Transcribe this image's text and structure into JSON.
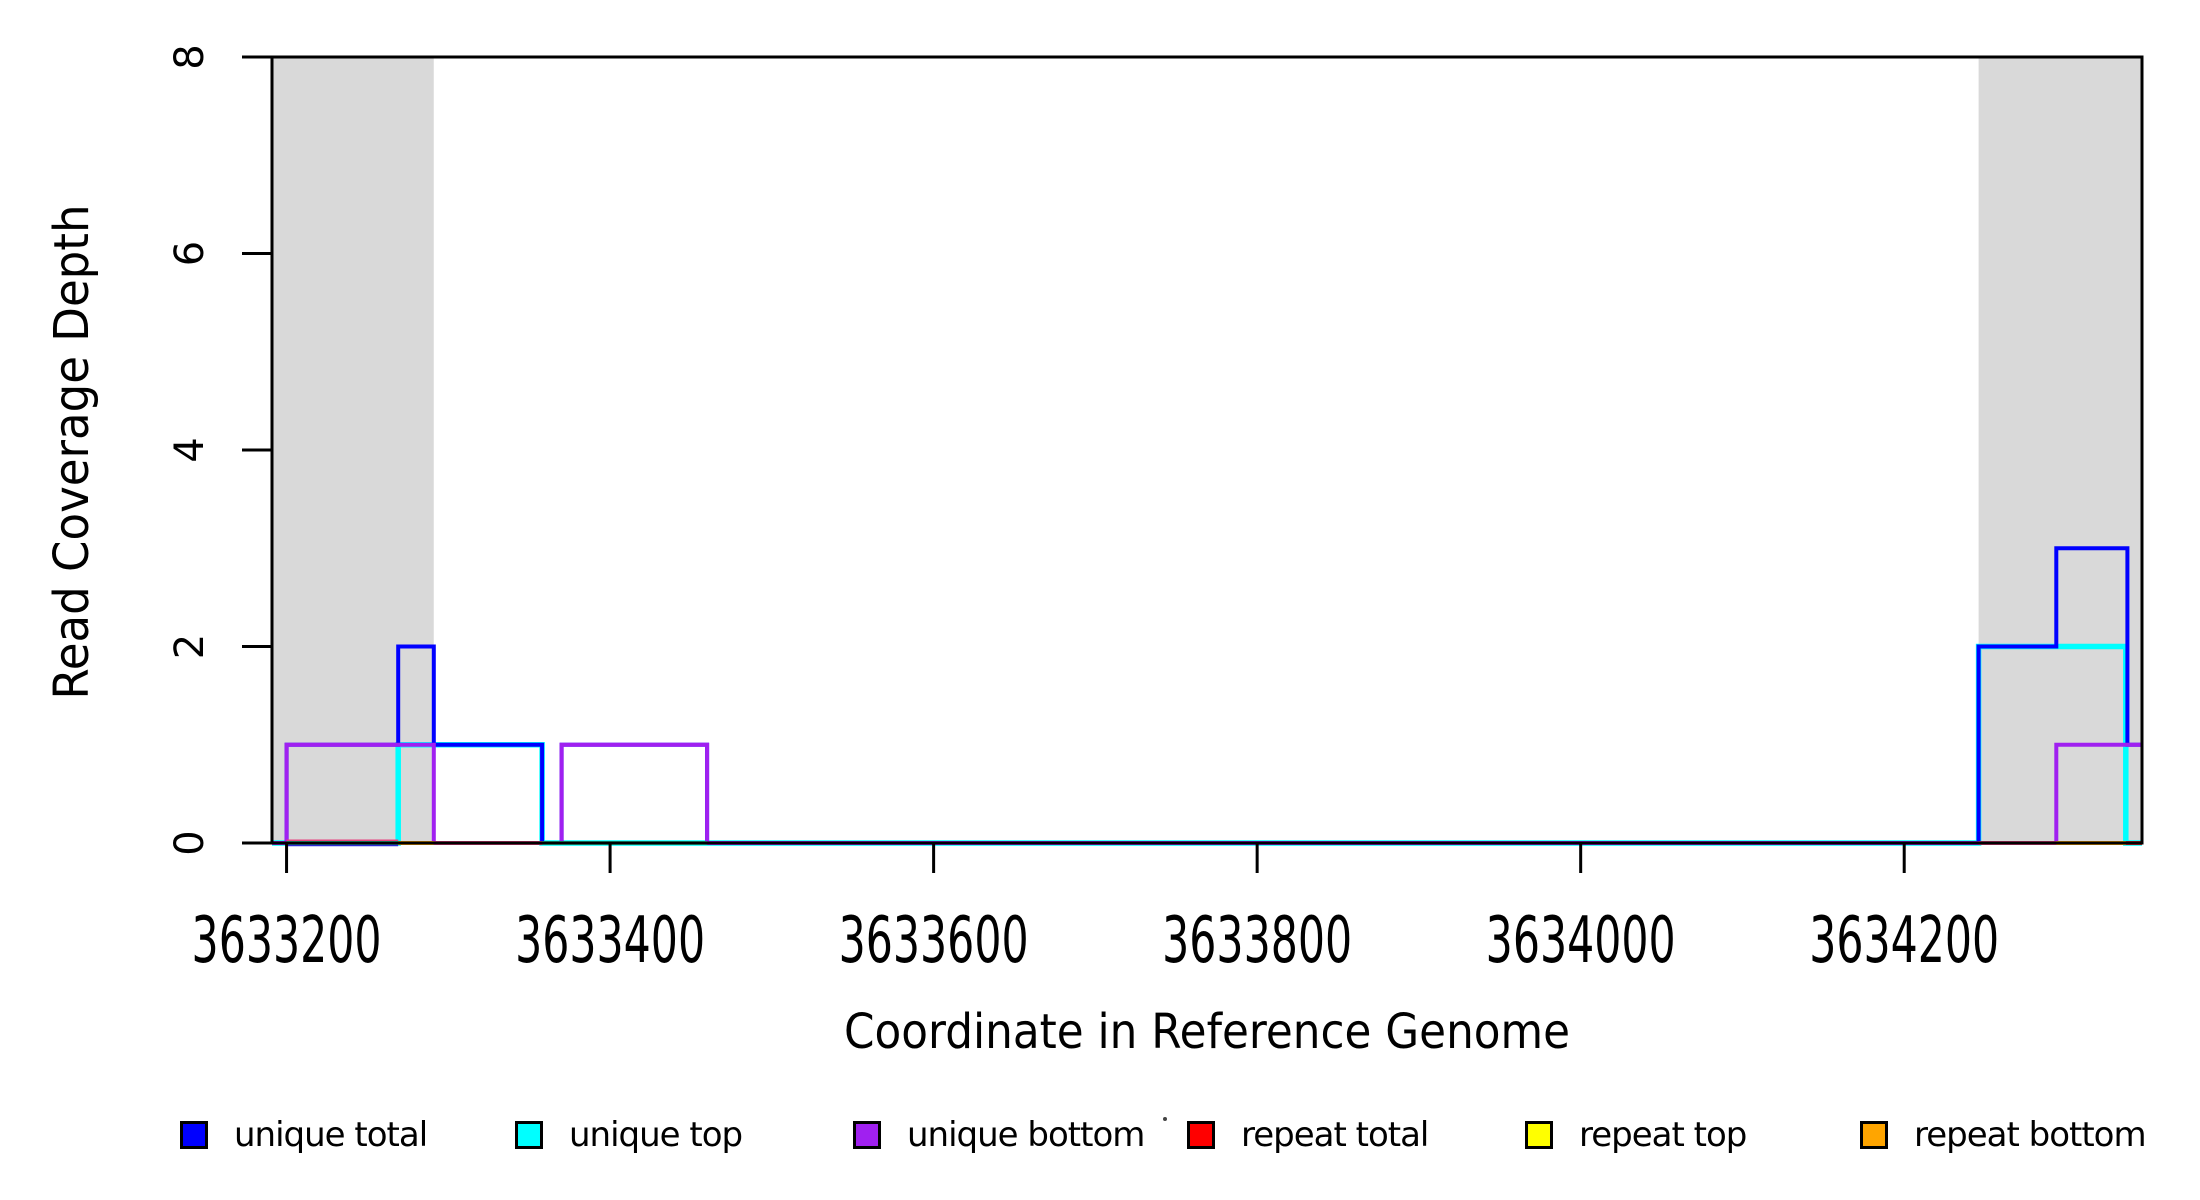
{
  "chart_data": {
    "type": "step-line",
    "title": "",
    "xlabel": "Coordinate in Reference Genome",
    "ylabel": "Read Coverage Depth",
    "x_range": [
      3633191,
      3634347
    ],
    "y_range": [
      0,
      8
    ],
    "x_ticks": [
      3633200,
      3633400,
      3633600,
      3633800,
      3634000,
      3634200
    ],
    "x_tick_labels": [
      "3633200",
      "3633400",
      "3633600",
      "3633800",
      "3634000",
      "3634200"
    ],
    "y_ticks": [
      0,
      2,
      4,
      6,
      8
    ],
    "y_tick_labels": [
      "0",
      "2",
      "4",
      "6",
      "8"
    ],
    "grid": false,
    "legend_position": "bottom",
    "plot_background": "#ffffff",
    "border_color": "#000000",
    "highlight_regions": [
      {
        "x1": 3633191,
        "x2": 3633291,
        "color": "#D9D9D9"
      },
      {
        "x1": 3634246,
        "x2": 3634347,
        "color": "#D9D9D9"
      }
    ],
    "series": [
      {
        "name": "unique total",
        "color": "#0000FF",
        "points": [
          [
            3633191,
            0
          ],
          [
            3633200,
            0
          ],
          [
            3633200,
            1
          ],
          [
            3633269,
            1
          ],
          [
            3633269,
            2
          ],
          [
            3633291,
            2
          ],
          [
            3633291,
            1
          ],
          [
            3633358,
            1
          ],
          [
            3633358,
            0
          ],
          [
            3633370,
            0
          ],
          [
            3633370,
            1
          ],
          [
            3633460,
            1
          ],
          [
            3633460,
            0
          ],
          [
            3634246,
            0
          ],
          [
            3634246,
            2
          ],
          [
            3634294,
            2
          ],
          [
            3634294,
            3
          ],
          [
            3634338,
            3
          ],
          [
            3634338,
            1
          ],
          [
            3634347,
            1
          ]
        ]
      },
      {
        "name": "unique top",
        "color": "#00FFFF",
        "points": [
          [
            3633191,
            0
          ],
          [
            3633269,
            0
          ],
          [
            3633269,
            1
          ],
          [
            3633358,
            1
          ],
          [
            3633358,
            0
          ],
          [
            3634246,
            0
          ],
          [
            3634246,
            2
          ],
          [
            3634337,
            2
          ],
          [
            3634337,
            0
          ],
          [
            3634347,
            0
          ]
        ]
      },
      {
        "name": "unique bottom",
        "color": "#A020F0",
        "points": [
          [
            3633191,
            0
          ],
          [
            3633200,
            0
          ],
          [
            3633200,
            1
          ],
          [
            3633291,
            1
          ],
          [
            3633291,
            0
          ],
          [
            3633370,
            0
          ],
          [
            3633370,
            1
          ],
          [
            3633460,
            1
          ],
          [
            3633460,
            0
          ],
          [
            3634294,
            0
          ],
          [
            3634294,
            1
          ],
          [
            3634347,
            1
          ]
        ]
      },
      {
        "name": "repeat total",
        "color": "#FF0000",
        "points": [
          [
            3633191,
            0
          ],
          [
            3634347,
            0
          ]
        ]
      },
      {
        "name": "repeat top",
        "color": "#FFFF00",
        "points": [
          [
            3633191,
            0
          ],
          [
            3634347,
            0
          ]
        ]
      },
      {
        "name": "repeat bottom",
        "color": "#FFA500",
        "points": [
          [
            3633191,
            0
          ],
          [
            3634347,
            0
          ]
        ]
      }
    ],
    "baseline_color_segments": [
      {
        "x1": 3633191,
        "x2": 3633200,
        "color": "#A020F0",
        "dy": 0,
        "w": 4
      },
      {
        "x1": 3633200,
        "x2": 3633269,
        "color": "#E8417F",
        "dy": -2.5,
        "w": 2
      },
      {
        "x1": 3633200,
        "x2": 3633269,
        "color": "#1FD3A8",
        "dy": 0,
        "w": 4
      },
      {
        "x1": 3633200,
        "x2": 3633269,
        "color": "#2B2BD5",
        "dy": 2.5,
        "w": 1.5
      },
      {
        "x1": 3633269,
        "x2": 3633291,
        "color": "#FFA500",
        "dy": 0,
        "w": 4
      },
      {
        "x1": 3633291,
        "x2": 3633358,
        "color": "#E8417F",
        "dy": 0,
        "w": 4
      },
      {
        "x1": 3633358,
        "x2": 3633460,
        "color": "#1FD3A8",
        "dy": 0,
        "w": 4
      },
      {
        "x1": 3633460,
        "x2": 3634246,
        "color": "#A020F0",
        "dy": 0,
        "w": 4
      },
      {
        "x1": 3634246,
        "x2": 3634294,
        "color": "#E8417F",
        "dy": 0,
        "w": 4
      },
      {
        "x1": 3634294,
        "x2": 3634337,
        "color": "#FFA500",
        "dy": 0,
        "w": 4
      },
      {
        "x1": 3634337,
        "x2": 3634347,
        "color": "#DD2222",
        "dy": 0,
        "w": 4
      }
    ]
  },
  "legend": {
    "items": [
      {
        "label": "unique total",
        "color": "#0000FF"
      },
      {
        "label": "unique top",
        "color": "#00FFFF"
      },
      {
        "label": "unique bottom",
        "color": "#A020F0"
      },
      {
        "label": "repeat total",
        "color": "#FF0000"
      },
      {
        "label": "repeat top",
        "color": "#FFFF00"
      },
      {
        "label": "repeat bottom",
        "color": "#FFA500"
      }
    ]
  }
}
